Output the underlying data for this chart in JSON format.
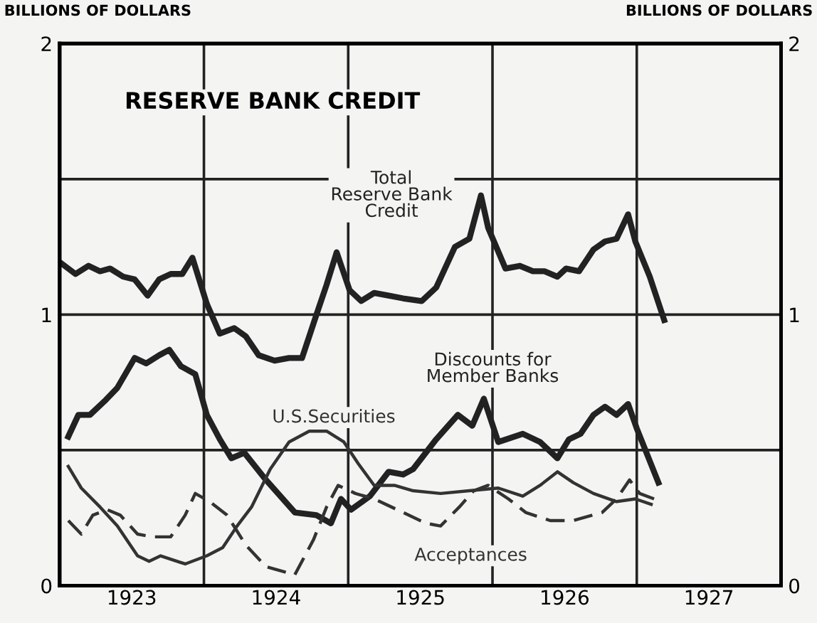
{
  "chart_data": {
    "type": "line",
    "title": "RESERVE BANK CREDIT",
    "ylabel": "BILLIONS OF DOLLARS",
    "y2label": "BILLIONS OF DOLLARS",
    "xlim": [
      1923,
      1928
    ],
    "xticks": [
      {
        "value": 1923.5,
        "label": "1923"
      },
      {
        "value": 1924.5,
        "label": "1924"
      },
      {
        "value": 1925.5,
        "label": "1925"
      },
      {
        "value": 1926.5,
        "label": "1926"
      },
      {
        "value": 1927.5,
        "label": "1927"
      }
    ],
    "ylim": [
      0,
      2
    ],
    "yticks": [
      0,
      {
        "value": 0.5,
        "label": null
      },
      1,
      {
        "value": 1.5,
        "label": null
      },
      2
    ],
    "y2lim": [
      0,
      2
    ],
    "y2ticks": [
      0,
      1,
      2
    ],
    "grid": "y",
    "legend": false,
    "ref_lines": [
      {
        "axis": "x",
        "value": 1924,
        "label": null
      },
      {
        "axis": "x",
        "value": 1925,
        "label": null
      },
      {
        "axis": "x",
        "value": 1926,
        "label": null
      },
      {
        "axis": "x",
        "value": 1927,
        "label": null
      }
    ],
    "series": [
      {
        "name": "Total\nReserve Bank\nCredit",
        "color": "#222222",
        "line_style": "solid",
        "x": [
          1923.01,
          1923.11,
          1923.2,
          1923.28,
          1923.35,
          1923.44,
          1923.52,
          1923.61,
          1923.69,
          1923.77,
          1923.85,
          1923.92,
          1924.02,
          1924.11,
          1924.21,
          1924.29,
          1924.38,
          1924.49,
          1924.59,
          1924.68,
          1924.78,
          1924.85,
          1924.92,
          1925.01,
          1925.09,
          1925.18,
          1925.28,
          1925.38,
          1925.51,
          1925.61,
          1925.74,
          1925.84,
          1925.92,
          1925.97,
          1926.09,
          1926.19,
          1926.28,
          1926.36,
          1926.45,
          1926.51,
          1926.6,
          1926.7,
          1926.78,
          1926.86,
          1926.94,
          1926.99,
          1927.09,
          1927.19
        ],
        "values": [
          1.19,
          1.15,
          1.18,
          1.16,
          1.17,
          1.14,
          1.13,
          1.07,
          1.13,
          1.15,
          1.15,
          1.21,
          1.04,
          0.93,
          0.95,
          0.92,
          0.85,
          0.83,
          0.84,
          0.84,
          1.0,
          1.11,
          1.23,
          1.09,
          1.05,
          1.08,
          1.07,
          1.06,
          1.05,
          1.1,
          1.25,
          1.28,
          1.44,
          1.32,
          1.17,
          1.18,
          1.16,
          1.16,
          1.14,
          1.17,
          1.16,
          1.24,
          1.27,
          1.28,
          1.37,
          1.27,
          1.14,
          0.98
        ]
      },
      {
        "name": "Discounts for\nMember Banks",
        "color": "#222222",
        "line_style": "solid",
        "x": [
          1923.06,
          1923.13,
          1923.21,
          1923.31,
          1923.4,
          1923.52,
          1923.6,
          1923.69,
          1923.76,
          1923.84,
          1923.94,
          1924.02,
          1924.11,
          1924.19,
          1924.28,
          1924.43,
          1924.63,
          1924.78,
          1924.88,
          1924.95,
          1925.02,
          1925.15,
          1925.28,
          1925.38,
          1925.45,
          1925.61,
          1925.76,
          1925.86,
          1925.94,
          1926.04,
          1926.21,
          1926.33,
          1926.45,
          1926.53,
          1926.61,
          1926.7,
          1926.78,
          1926.86,
          1926.94,
          1927.0,
          1927.15
        ],
        "values": [
          0.55,
          0.63,
          0.63,
          0.68,
          0.73,
          0.84,
          0.82,
          0.85,
          0.87,
          0.81,
          0.78,
          0.63,
          0.54,
          0.47,
          0.49,
          0.39,
          0.27,
          0.26,
          0.23,
          0.32,
          0.28,
          0.33,
          0.42,
          0.41,
          0.43,
          0.54,
          0.63,
          0.59,
          0.69,
          0.53,
          0.56,
          0.53,
          0.47,
          0.54,
          0.56,
          0.63,
          0.66,
          0.63,
          0.67,
          0.58,
          0.38
        ]
      },
      {
        "name": "U.S.Securities",
        "color": "#333333",
        "line_style": "solid",
        "x": [
          1923.06,
          1923.15,
          1923.28,
          1923.4,
          1923.54,
          1923.62,
          1923.7,
          1923.87,
          1924.02,
          1924.13,
          1924.23,
          1924.33,
          1924.46,
          1924.59,
          1924.73,
          1924.85,
          1924.97,
          1925.07,
          1925.18,
          1925.32,
          1925.45,
          1925.64,
          1925.84,
          1926.04,
          1926.21,
          1926.33,
          1926.45,
          1926.56,
          1926.7,
          1926.86,
          1926.99,
          1927.1
        ],
        "values": [
          0.44,
          0.36,
          0.29,
          0.22,
          0.11,
          0.09,
          0.11,
          0.08,
          0.11,
          0.14,
          0.22,
          0.29,
          0.43,
          0.53,
          0.57,
          0.57,
          0.53,
          0.45,
          0.37,
          0.37,
          0.35,
          0.34,
          0.35,
          0.36,
          0.33,
          0.37,
          0.42,
          0.38,
          0.34,
          0.31,
          0.32,
          0.3
        ]
      },
      {
        "name": "Acceptances",
        "color": "#333333",
        "line_style": "dashed",
        "x": [
          1923.06,
          1923.15,
          1923.23,
          1923.33,
          1923.42,
          1923.54,
          1923.64,
          1923.77,
          1923.87,
          1923.94,
          1924.04,
          1924.16,
          1924.29,
          1924.43,
          1924.63,
          1924.76,
          1924.85,
          1924.93,
          1925.05,
          1925.18,
          1925.38,
          1925.54,
          1925.64,
          1925.77,
          1925.87,
          1925.97,
          1926.11,
          1926.23,
          1926.4,
          1926.56,
          1926.76,
          1926.86,
          1926.95,
          1927.02,
          1927.12
        ],
        "values": [
          0.24,
          0.19,
          0.26,
          0.28,
          0.26,
          0.19,
          0.18,
          0.18,
          0.26,
          0.34,
          0.31,
          0.26,
          0.15,
          0.07,
          0.04,
          0.17,
          0.29,
          0.37,
          0.34,
          0.32,
          0.27,
          0.23,
          0.22,
          0.29,
          0.35,
          0.37,
          0.32,
          0.27,
          0.24,
          0.24,
          0.27,
          0.32,
          0.39,
          0.34,
          0.32
        ]
      }
    ]
  }
}
